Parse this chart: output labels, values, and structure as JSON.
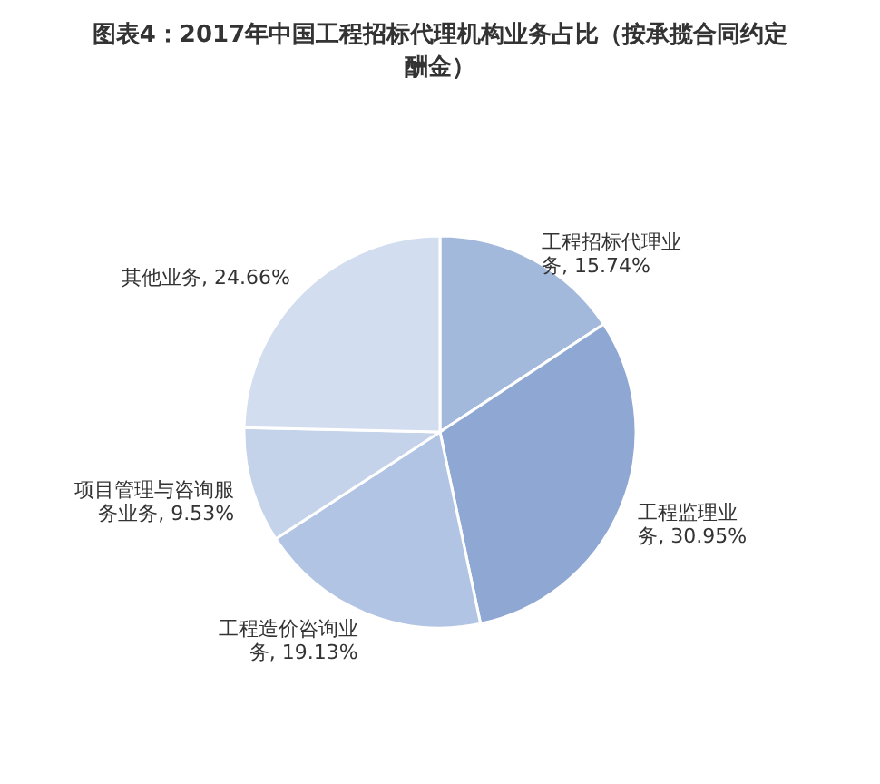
{
  "chart_data": {
    "type": "pie",
    "title": "图表4：2017年中国工程招标代理机构业务占比（按承揽合同约定酬金）",
    "categories": [
      "工程招标代理业务",
      "工程监理业务",
      "工程造价咨询业务",
      "项目管理与咨询服务业务",
      "其他业务"
    ],
    "values": [
      15.74,
      30.95,
      19.13,
      9.53,
      24.66
    ],
    "value_labels": [
      "15.74%",
      "30.95%",
      "19.13%",
      "9.53%",
      "24.66%"
    ],
    "colors": [
      "#a3b9dc",
      "#8fa8d3",
      "#b1c4e3",
      "#c4d3ea",
      "#d2ddef"
    ],
    "legend": false
  }
}
